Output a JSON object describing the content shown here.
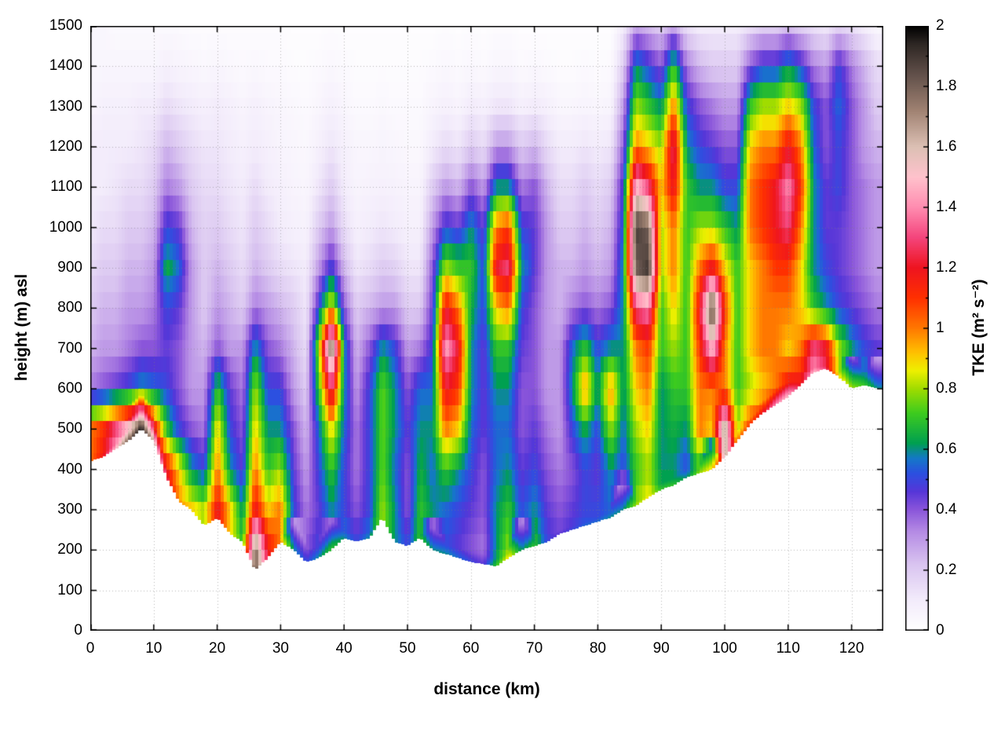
{
  "chart_data": {
    "type": "heatmap",
    "title": "",
    "xlabel": "distance (km)",
    "ylabel": "height (m) asl",
    "colorbar_label": "TKE (m² s⁻²)",
    "xlim": [
      0,
      125
    ],
    "ylim": [
      0,
      1500
    ],
    "clim": [
      0,
      2
    ],
    "grid": true,
    "legend_position": "colorbar-right",
    "x_ticks": [
      0,
      10,
      20,
      30,
      40,
      50,
      60,
      70,
      80,
      90,
      100,
      110,
      120
    ],
    "y_ticks": [
      0,
      100,
      200,
      300,
      400,
      500,
      600,
      700,
      800,
      900,
      1000,
      1100,
      1200,
      1300,
      1400,
      1500
    ],
    "colorbar_ticks": [
      0,
      0.2,
      0.4,
      0.6,
      0.8,
      1,
      1.2,
      1.4,
      1.6,
      1.8,
      2
    ],
    "palette": [
      [
        0.0,
        "#ffffff"
      ],
      [
        0.1,
        "#f3ecfb"
      ],
      [
        0.22,
        "#d9c4f0"
      ],
      [
        0.33,
        "#b48ae4"
      ],
      [
        0.4,
        "#8a55da"
      ],
      [
        0.46,
        "#5636d8"
      ],
      [
        0.52,
        "#2c50e0"
      ],
      [
        0.57,
        "#1478c8"
      ],
      [
        0.62,
        "#00a050"
      ],
      [
        0.72,
        "#3ecc1e"
      ],
      [
        0.8,
        "#a0dc00"
      ],
      [
        0.86,
        "#eef000"
      ],
      [
        0.92,
        "#ffc000"
      ],
      [
        1.0,
        "#ff7800"
      ],
      [
        1.1,
        "#ff3000"
      ],
      [
        1.2,
        "#ee1420"
      ],
      [
        1.3,
        "#f4457c"
      ],
      [
        1.4,
        "#ff8cb0"
      ],
      [
        1.5,
        "#ffc2cc"
      ],
      [
        1.6,
        "#dcc0b4"
      ],
      [
        1.72,
        "#a08272"
      ],
      [
        1.84,
        "#61504a"
      ],
      [
        1.94,
        "#2e2724"
      ],
      [
        2.0,
        "#000000"
      ]
    ],
    "x_km": [
      0,
      2,
      4,
      6,
      8,
      10,
      12,
      14,
      16,
      18,
      20,
      22,
      24,
      26,
      28,
      30,
      32,
      34,
      36,
      38,
      40,
      42,
      44,
      46,
      48,
      50,
      52,
      54,
      56,
      58,
      60,
      62,
      64,
      66,
      68,
      70,
      72,
      74,
      76,
      78,
      80,
      82,
      84,
      86,
      88,
      90,
      92,
      94,
      96,
      98,
      100,
      102,
      104,
      106,
      108,
      110,
      112,
      114,
      116,
      118,
      120,
      122,
      124
    ],
    "z_levels_m": [
      0,
      100,
      200,
      300,
      400,
      500,
      600,
      700,
      800,
      900,
      1000,
      1100,
      1200,
      1300,
      1400,
      1500
    ],
    "terrain_m": [
      420,
      430,
      450,
      470,
      500,
      470,
      380,
      320,
      300,
      260,
      280,
      240,
      220,
      150,
      180,
      220,
      200,
      170,
      180,
      200,
      230,
      220,
      230,
      280,
      220,
      210,
      230,
      200,
      190,
      180,
      170,
      165,
      160,
      180,
      200,
      210,
      220,
      240,
      250,
      260,
      270,
      280,
      300,
      310,
      330,
      350,
      360,
      380,
      390,
      400,
      430,
      470,
      510,
      540,
      560,
      580,
      610,
      640,
      650,
      630,
      600,
      610,
      600
    ],
    "surface_tke": [
      1.0,
      1.2,
      1.5,
      1.8,
      2.0,
      1.6,
      1.3,
      1.0,
      0.9,
      0.8,
      1.2,
      0.9,
      0.7,
      1.9,
      1.2,
      1.0,
      0.6,
      0.5,
      0.6,
      0.7,
      0.6,
      0.5,
      0.6,
      0.8,
      0.6,
      0.5,
      0.7,
      0.6,
      0.6,
      0.55,
      0.5,
      0.45,
      0.7,
      0.9,
      0.6,
      0.7,
      0.5,
      0.45,
      0.5,
      0.55,
      0.55,
      0.6,
      0.6,
      0.8,
      0.9,
      0.7,
      0.7,
      0.6,
      0.8,
      0.9,
      1.2,
      1.0,
      1.1,
      1.2,
      1.4,
      1.5,
      1.2,
      1.5,
      1.3,
      0.9,
      0.8,
      0.7,
      0.6
    ],
    "values_by_column": [
      [
        0,
        0,
        0,
        0,
        0,
        1.0,
        0.35,
        0.25,
        0.2,
        0.15,
        0.1,
        0.1,
        0.1,
        0.05,
        0.05,
        0.05
      ],
      [
        0,
        0,
        0,
        0,
        0,
        1.1,
        0.4,
        0.3,
        0.25,
        0.2,
        0.15,
        0.1,
        0.1,
        0.08,
        0.05,
        0.05
      ],
      [
        0,
        0,
        0,
        0,
        0,
        1.3,
        0.45,
        0.3,
        0.25,
        0.2,
        0.15,
        0.12,
        0.1,
        0.08,
        0.05,
        0.03
      ],
      [
        0,
        0,
        0,
        0,
        0,
        1.5,
        0.5,
        0.35,
        0.3,
        0.25,
        0.2,
        0.15,
        0.1,
        0.08,
        0.05,
        0.03
      ],
      [
        0,
        0,
        0,
        0,
        0,
        1.8,
        0.6,
        0.4,
        0.3,
        0.25,
        0.2,
        0.15,
        0.12,
        0.1,
        0.05,
        0.03
      ],
      [
        0,
        0,
        0,
        0,
        0,
        1.2,
        0.55,
        0.4,
        0.35,
        0.3,
        0.25,
        0.2,
        0.15,
        0.1,
        0.05,
        0.03
      ],
      [
        0,
        0,
        0,
        0,
        1.2,
        0.7,
        0.5,
        0.45,
        0.5,
        0.65,
        0.5,
        0.35,
        0.25,
        0.15,
        0.08,
        0.03
      ],
      [
        0,
        0,
        0,
        0,
        0.9,
        0.5,
        0.4,
        0.4,
        0.45,
        0.55,
        0.45,
        0.3,
        0.2,
        0.12,
        0.06,
        0.03
      ],
      [
        0,
        0,
        0,
        0.9,
        0.6,
        0.4,
        0.3,
        0.3,
        0.3,
        0.3,
        0.25,
        0.2,
        0.15,
        0.1,
        0.05,
        0.02
      ],
      [
        0,
        0,
        0,
        0.8,
        0.5,
        0.35,
        0.3,
        0.25,
        0.2,
        0.2,
        0.18,
        0.15,
        0.12,
        0.08,
        0.04,
        0.02
      ],
      [
        0,
        0,
        0,
        1.2,
        1.0,
        0.9,
        0.7,
        0.4,
        0.3,
        0.25,
        0.2,
        0.15,
        0.12,
        0.1,
        0.05,
        0.02
      ],
      [
        0,
        0,
        0,
        0.9,
        0.6,
        0.5,
        0.45,
        0.3,
        0.25,
        0.2,
        0.15,
        0.12,
        0.1,
        0.08,
        0.04,
        0.02
      ],
      [
        0,
        0,
        0,
        0.6,
        0.45,
        0.4,
        0.35,
        0.3,
        0.2,
        0.15,
        0.12,
        0.1,
        0.08,
        0.06,
        0.03,
        0.02
      ],
      [
        0,
        0,
        1.8,
        1.2,
        1.0,
        0.9,
        0.8,
        0.6,
        0.35,
        0.25,
        0.2,
        0.15,
        0.1,
        0.08,
        0.04,
        0.02
      ],
      [
        0,
        0,
        1.2,
        0.9,
        0.7,
        0.6,
        0.5,
        0.4,
        0.3,
        0.2,
        0.15,
        0.1,
        0.08,
        0.06,
        0.03,
        0.02
      ],
      [
        0,
        0,
        0,
        1.0,
        0.8,
        0.6,
        0.5,
        0.35,
        0.25,
        0.15,
        0.1,
        0.08,
        0.06,
        0.05,
        0.03,
        0.02
      ],
      [
        0,
        0,
        0,
        0.5,
        0.45,
        0.4,
        0.3,
        0.25,
        0.2,
        0.12,
        0.08,
        0.06,
        0.05,
        0.04,
        0.02,
        0.01
      ],
      [
        0,
        0,
        0.4,
        0.35,
        0.3,
        0.25,
        0.2,
        0.15,
        0.12,
        0.1,
        0.07,
        0.05,
        0.04,
        0.03,
        0.02,
        0.01
      ],
      [
        0,
        0,
        0.5,
        0.45,
        0.5,
        0.55,
        0.7,
        0.8,
        0.5,
        0.3,
        0.2,
        0.12,
        0.08,
        0.05,
        0.03,
        0.01
      ],
      [
        0,
        0,
        0,
        0.6,
        0.7,
        0.9,
        1.3,
        1.8,
        0.9,
        0.5,
        0.3,
        0.2,
        0.12,
        0.08,
        0.04,
        0.02
      ],
      [
        0,
        0,
        0,
        0.5,
        0.5,
        0.55,
        0.6,
        0.6,
        0.4,
        0.25,
        0.15,
        0.1,
        0.08,
        0.05,
        0.03,
        0.01
      ],
      [
        0,
        0,
        0,
        0.4,
        0.35,
        0.35,
        0.3,
        0.25,
        0.2,
        0.12,
        0.08,
        0.06,
        0.05,
        0.03,
        0.02,
        0.01
      ],
      [
        0,
        0,
        0,
        0.5,
        0.5,
        0.5,
        0.5,
        0.4,
        0.25,
        0.15,
        0.1,
        0.07,
        0.05,
        0.03,
        0.02,
        0.01
      ],
      [
        0,
        0,
        0,
        0.8,
        0.75,
        0.75,
        0.75,
        0.6,
        0.3,
        0.2,
        0.12,
        0.08,
        0.06,
        0.04,
        0.02,
        0.01
      ],
      [
        0,
        0,
        0,
        0.6,
        0.55,
        0.6,
        0.6,
        0.5,
        0.3,
        0.18,
        0.1,
        0.07,
        0.05,
        0.03,
        0.02,
        0.01
      ],
      [
        0,
        0,
        0,
        0.4,
        0.4,
        0.45,
        0.4,
        0.3,
        0.2,
        0.12,
        0.08,
        0.06,
        0.04,
        0.03,
        0.02,
        0.01
      ],
      [
        0,
        0,
        0,
        0.7,
        0.65,
        0.6,
        0.55,
        0.35,
        0.2,
        0.12,
        0.08,
        0.06,
        0.04,
        0.03,
        0.02,
        0.01
      ],
      [
        0,
        0,
        0,
        0.6,
        0.55,
        0.6,
        0.55,
        0.5,
        0.45,
        0.4,
        0.3,
        0.2,
        0.1,
        0.06,
        0.03,
        0.01
      ],
      [
        0,
        0,
        0.5,
        0.55,
        0.7,
        1.0,
        1.2,
        1.45,
        1.2,
        0.8,
        0.5,
        0.3,
        0.15,
        0.08,
        0.04,
        0.02
      ],
      [
        0,
        0,
        0.45,
        0.5,
        0.6,
        0.9,
        1.1,
        1.2,
        1.0,
        0.7,
        0.45,
        0.25,
        0.12,
        0.06,
        0.03,
        0.01
      ],
      [
        0,
        0,
        0.4,
        0.45,
        0.5,
        0.55,
        0.6,
        0.6,
        0.65,
        0.7,
        0.6,
        0.4,
        0.2,
        0.1,
        0.04,
        0.02
      ],
      [
        0,
        0,
        0.35,
        0.4,
        0.4,
        0.45,
        0.45,
        0.45,
        0.5,
        0.5,
        0.45,
        0.3,
        0.15,
        0.08,
        0.03,
        0.01
      ],
      [
        0,
        0,
        0.6,
        0.6,
        0.55,
        0.55,
        0.6,
        0.7,
        0.9,
        1.2,
        1.0,
        0.6,
        0.3,
        0.12,
        0.05,
        0.02
      ],
      [
        0,
        0,
        0.8,
        0.7,
        0.6,
        0.55,
        0.6,
        0.7,
        1.0,
        1.3,
        1.1,
        0.6,
        0.3,
        0.12,
        0.05,
        0.02
      ],
      [
        0,
        0,
        0,
        0.5,
        0.45,
        0.4,
        0.4,
        0.45,
        0.5,
        0.6,
        0.5,
        0.35,
        0.2,
        0.08,
        0.03,
        0.01
      ],
      [
        0,
        0,
        0,
        0.6,
        0.5,
        0.45,
        0.4,
        0.4,
        0.4,
        0.45,
        0.45,
        0.4,
        0.25,
        0.1,
        0.04,
        0.01
      ],
      [
        0,
        0,
        0,
        0.45,
        0.4,
        0.35,
        0.3,
        0.3,
        0.3,
        0.3,
        0.3,
        0.25,
        0.15,
        0.08,
        0.03,
        0.01
      ],
      [
        0,
        0,
        0,
        0.4,
        0.35,
        0.3,
        0.3,
        0.3,
        0.25,
        0.25,
        0.2,
        0.15,
        0.1,
        0.05,
        0.02,
        0.01
      ],
      [
        0,
        0,
        0,
        0.45,
        0.4,
        0.5,
        0.6,
        0.55,
        0.35,
        0.25,
        0.2,
        0.15,
        0.1,
        0.05,
        0.02,
        0.01
      ],
      [
        0,
        0,
        0,
        0.5,
        0.5,
        0.65,
        1.0,
        0.7,
        0.4,
        0.3,
        0.25,
        0.2,
        0.12,
        0.06,
        0.03,
        0.01
      ],
      [
        0,
        0,
        0,
        0.5,
        0.45,
        0.5,
        0.6,
        0.5,
        0.35,
        0.25,
        0.2,
        0.15,
        0.1,
        0.05,
        0.02,
        0.01
      ],
      [
        0,
        0,
        0,
        0.55,
        0.6,
        0.8,
        1.0,
        0.6,
        0.4,
        0.3,
        0.25,
        0.2,
        0.12,
        0.06,
        0.03,
        0.01
      ],
      [
        0,
        0,
        0,
        0,
        0.5,
        0.55,
        0.6,
        0.6,
        0.6,
        0.6,
        0.55,
        0.5,
        0.4,
        0.3,
        0.2,
        0.1
      ],
      [
        0,
        0,
        0,
        0,
        0.7,
        0.8,
        0.9,
        1.0,
        1.3,
        1.8,
        1.9,
        1.5,
        1.0,
        0.8,
        0.6,
        0.3
      ],
      [
        0,
        0,
        0,
        0,
        0.8,
        0.9,
        1.0,
        1.1,
        1.4,
        1.9,
        1.8,
        1.3,
        0.9,
        0.7,
        0.5,
        0.25
      ],
      [
        0,
        0,
        0,
        0,
        0.6,
        0.6,
        0.6,
        0.7,
        0.7,
        0.8,
        0.8,
        0.9,
        0.8,
        0.6,
        0.4,
        0.2
      ],
      [
        0,
        0,
        0,
        0,
        0.6,
        0.65,
        0.7,
        0.8,
        0.9,
        1.0,
        1.0,
        1.2,
        1.3,
        1.0,
        0.7,
        0.3
      ],
      [
        0,
        0,
        0,
        0,
        0.5,
        0.6,
        0.7,
        0.7,
        0.7,
        0.7,
        0.7,
        0.7,
        0.6,
        0.5,
        0.35,
        0.15
      ],
      [
        0,
        0,
        0,
        0,
        0.7,
        1.0,
        1.0,
        1.1,
        1.2,
        1.0,
        0.8,
        0.6,
        0.5,
        0.4,
        0.25,
        0.1
      ],
      [
        0,
        0,
        0,
        0,
        0,
        0.9,
        1.0,
        1.5,
        1.9,
        1.2,
        0.8,
        0.6,
        0.45,
        0.35,
        0.2,
        0.1
      ],
      [
        0,
        0,
        0,
        0,
        0,
        1.7,
        1.0,
        1.0,
        1.1,
        0.9,
        0.7,
        0.5,
        0.4,
        0.3,
        0.2,
        0.1
      ],
      [
        0,
        0,
        0,
        0,
        0,
        0.8,
        0.7,
        0.7,
        0.7,
        0.7,
        0.6,
        0.5,
        0.4,
        0.3,
        0.2,
        0.1
      ],
      [
        0,
        0,
        0,
        0,
        0,
        0,
        0.8,
        0.9,
        0.9,
        0.9,
        1.0,
        1.0,
        0.9,
        0.7,
        0.4,
        0.15
      ],
      [
        0,
        0,
        0,
        0,
        0,
        0,
        0.9,
        1.0,
        1.0,
        1.0,
        1.1,
        1.1,
        1.0,
        0.8,
        0.5,
        0.2
      ],
      [
        0,
        0,
        0,
        0,
        0,
        0,
        1.0,
        1.0,
        1.0,
        1.1,
        1.2,
        1.2,
        1.0,
        0.8,
        0.5,
        0.2
      ],
      [
        0,
        0,
        0,
        0,
        0,
        0,
        1.2,
        0.9,
        1.0,
        1.1,
        1.3,
        1.4,
        1.2,
        0.9,
        0.6,
        0.25
      ],
      [
        0,
        0,
        0,
        0,
        0,
        0,
        0,
        1.0,
        0.9,
        0.9,
        1.0,
        1.1,
        1.0,
        0.8,
        0.5,
        0.2
      ],
      [
        0,
        0,
        0,
        0,
        0,
        0,
        0,
        1.3,
        0.7,
        0.6,
        0.6,
        0.6,
        0.55,
        0.5,
        0.35,
        0.15
      ],
      [
        0,
        0,
        0,
        0,
        0,
        0,
        0,
        1.2,
        0.6,
        0.5,
        0.45,
        0.45,
        0.4,
        0.4,
        0.3,
        0.12
      ],
      [
        0,
        0,
        0,
        0,
        0,
        0,
        0,
        0.8,
        0.5,
        0.45,
        0.45,
        0.5,
        0.5,
        0.55,
        0.5,
        0.2
      ],
      [
        0,
        0,
        0,
        0,
        0,
        0,
        0,
        0.6,
        0.45,
        0.4,
        0.4,
        0.4,
        0.4,
        0.4,
        0.35,
        0.15
      ],
      [
        0,
        0,
        0,
        0,
        0,
        0,
        0,
        0.5,
        0.4,
        0.35,
        0.35,
        0.35,
        0.3,
        0.3,
        0.25,
        0.1
      ],
      [
        0,
        0,
        0,
        0,
        0,
        0,
        0,
        0.45,
        0.35,
        0.3,
        0.3,
        0.3,
        0.25,
        0.2,
        0.15,
        0.05
      ]
    ]
  }
}
